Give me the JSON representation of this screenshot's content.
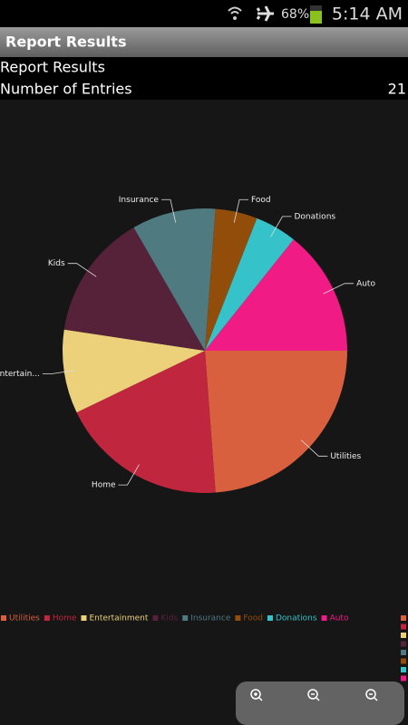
{
  "status_bar": {
    "battery": "68%",
    "time": "5:14 AM"
  },
  "title_bar": {
    "title": "Report Results"
  },
  "header": {
    "title": "Report Results",
    "entries_label": "Number of Entries",
    "entries_value": 21
  },
  "chart_data": {
    "type": "pie",
    "categories": [
      "Utilities",
      "Home",
      "Entertainment",
      "Kids",
      "Insurance",
      "Food",
      "Donations",
      "Auto"
    ],
    "labels": [
      "Utilities",
      "Home",
      "Entertain...",
      "Kids",
      "Insurance",
      "Food",
      "Donations",
      "Auto"
    ],
    "values": [
      5,
      4,
      2,
      3,
      2,
      1,
      1,
      3
    ],
    "colors": [
      "#d9603f",
      "#c0263d",
      "#ecd17a",
      "#56223a",
      "#4e7a80",
      "#934d0a",
      "#35c2c9",
      "#f01b85"
    ],
    "legend": "bottom"
  }
}
